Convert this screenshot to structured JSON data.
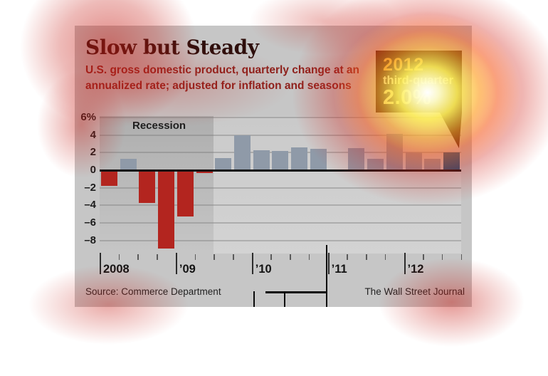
{
  "header": {
    "title": "Slow but Steady",
    "subtitle_line1": "U.S. gross domestic product, quarterly change at an",
    "subtitle_line2": "annualized rate; adjusted for inflation and seasons"
  },
  "callout": {
    "year": "2012",
    "quarter_label": "third-quarter",
    "value_label": "2.0%",
    "background": "#200303",
    "year_color": "#e8a93c",
    "value_color": "#f5ee8e"
  },
  "footer": {
    "source": "Source: Commerce Department",
    "credit": "The Wall Street Journal"
  },
  "overlay": {
    "hotspot_color": "#ffffff",
    "heat_color": "#c61c14"
  },
  "chart_data": {
    "type": "bar",
    "title": "Slow but Steady",
    "subtitle": "U.S. gross domestic product, quarterly change at an annualized rate; adjusted for inflation and seasons",
    "categories": [
      "2008 Q1",
      "2008 Q2",
      "2008 Q3",
      "2008 Q4",
      "2009 Q1",
      "2009 Q2",
      "2009 Q3",
      "2009 Q4",
      "2010 Q1",
      "2010 Q2",
      "2010 Q3",
      "2010 Q4",
      "2011 Q1",
      "2011 Q2",
      "2011 Q3",
      "2011 Q4",
      "2012 Q1",
      "2012 Q2",
      "2012 Q3"
    ],
    "values": [
      -1.8,
      1.3,
      -3.7,
      -8.9,
      -5.3,
      -0.3,
      1.4,
      4.0,
      2.3,
      2.2,
      2.6,
      2.4,
      0.1,
      2.5,
      1.3,
      4.1,
      2.0,
      1.3,
      2.0
    ],
    "ylabel": "percent",
    "ylim": [
      -9.5,
      6.2
    ],
    "yticks": [
      6,
      4,
      2,
      0,
      -2,
      -4,
      -6,
      -8
    ],
    "ytick_labels": [
      "6%",
      "4",
      "2",
      "0",
      "–2",
      "–4",
      "–6",
      "–8"
    ],
    "xtick_labels": [
      "2008",
      "’09",
      "’10",
      "’11",
      "’12"
    ],
    "grid": true,
    "legend": "none",
    "bar_colors": {
      "negative": "#b3251f",
      "positive": "#8f9aa8",
      "highlight": "#15597f"
    },
    "highlight_index": 18,
    "annotations": [
      {
        "type": "band",
        "label": "Recession",
        "from": "2008 Q1",
        "to": "2009 Q2"
      },
      {
        "type": "callout",
        "text": "2012 third-quarter 2.0%",
        "points_to": "2012 Q3"
      }
    ]
  }
}
